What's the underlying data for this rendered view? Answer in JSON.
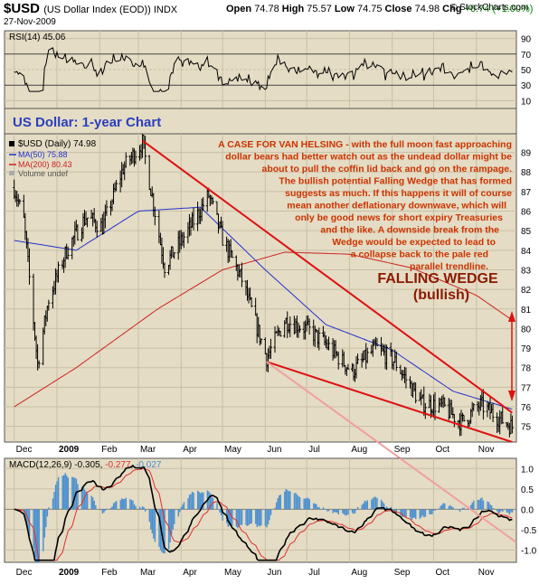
{
  "header": {
    "symbol": "$USD",
    "description": "(US Dollar Index (EOD)) INDX",
    "date": "27-Nov-2009",
    "open_label": "Open",
    "open": "74.78",
    "high_label": "High",
    "high": "75.57",
    "low_label": "Low",
    "low": "74.75",
    "close_label": "Close",
    "close": "74.98",
    "chg_label": "Chg",
    "chg": "+0.74 (+1.00%)",
    "brand": "© StockCharts.com"
  },
  "colors": {
    "panel_bg": "#e4dcc4",
    "price": "#000000",
    "ma50": "#2233cc",
    "ma200": "#cc2222",
    "wedge": "#dd1111",
    "annotation": "#cc3300",
    "title_blue": "#2a3fbf",
    "macd_hist": "#4a8fd0",
    "macd_signal": "#e03030"
  },
  "rsi_panel": {
    "label": "RSI(14) 45.06",
    "axis_ticks": [
      "90",
      "70",
      "50",
      "30",
      "10"
    ]
  },
  "price_panel": {
    "chart_title": "US Dollar: 1-year Chart",
    "legend": {
      "price": "$USD (Daily) 74.98",
      "ma50": "MA(50) 75.88",
      "ma200": "MA(200) 80.43",
      "volume": "Volume undef"
    },
    "annotation_lines": [
      "A CASE FOR VAN HELSING - with the full moon fast approaching",
      "dollar bears had better watch out as the undead dollar might be",
      "about to pull the coffin lid back and go on the rampage.",
      "The bullish potential Falling Wedge that has formed",
      "suggests as much. If this happens it will of course",
      "mean another deflationary downwave, which will",
      "only be good news for short expiry Treasuries",
      "and the like. A downside break from the",
      "Wedge would be expected to lead to",
      "a collapse back to the pale red",
      "parallel trendline."
    ],
    "wedge_label_1": "FALLING WEDGE",
    "wedge_label_2": "(bullish)",
    "axis_ticks": [
      "89",
      "88",
      "87",
      "86",
      "85",
      "84",
      "83",
      "82",
      "81",
      "80",
      "79",
      "78",
      "77",
      "76",
      "75"
    ]
  },
  "macd_panel": {
    "label_prefix": "MACD(12,26,9)",
    "macd": "-0.305",
    "signal": "-0.277",
    "hist": "-0.027",
    "axis_ticks": [
      "1.0",
      "0.5",
      "0.0",
      "-0.5",
      "-1.0"
    ]
  },
  "x_axis": {
    "labels": [
      "Dec",
      "2009",
      "Feb",
      "Mar",
      "Apr",
      "May",
      "Jun",
      "Jul",
      "Aug",
      "Sep",
      "Oct",
      "Nov"
    ]
  },
  "chart_data": {
    "type": "line",
    "title": "US Dollar: 1-year Chart",
    "x_range": [
      "2008-12",
      "2009-11-27"
    ],
    "y_range": [
      74.5,
      89.8
    ],
    "price_keypoints": [
      {
        "x": "2008-12-01",
        "y": 87.2
      },
      {
        "x": "2008-12-08",
        "y": 85.5
      },
      {
        "x": "2008-12-18",
        "y": 78.2
      },
      {
        "x": "2008-12-26",
        "y": 81.5
      },
      {
        "x": "2009-01-08",
        "y": 84.0
      },
      {
        "x": "2009-01-22",
        "y": 85.7
      },
      {
        "x": "2009-02-03",
        "y": 85.2
      },
      {
        "x": "2009-02-18",
        "y": 88.2
      },
      {
        "x": "2009-03-04",
        "y": 89.5
      },
      {
        "x": "2009-03-20",
        "y": 83.2
      },
      {
        "x": "2009-04-06",
        "y": 85.0
      },
      {
        "x": "2009-04-21",
        "y": 86.8
      },
      {
        "x": "2009-05-01",
        "y": 84.6
      },
      {
        "x": "2009-05-15",
        "y": 82.5
      },
      {
        "x": "2009-06-02",
        "y": 78.5
      },
      {
        "x": "2009-06-15",
        "y": 80.4
      },
      {
        "x": "2009-07-01",
        "y": 80.0
      },
      {
        "x": "2009-07-15",
        "y": 79.2
      },
      {
        "x": "2009-08-03",
        "y": 77.8
      },
      {
        "x": "2009-08-20",
        "y": 79.0
      },
      {
        "x": "2009-09-03",
        "y": 78.3
      },
      {
        "x": "2009-09-22",
        "y": 76.2
      },
      {
        "x": "2009-10-08",
        "y": 76.0
      },
      {
        "x": "2009-10-21",
        "y": 75.2
      },
      {
        "x": "2009-11-04",
        "y": 76.1
      },
      {
        "x": "2009-11-20",
        "y": 75.3
      },
      {
        "x": "2009-11-27",
        "y": 74.98
      }
    ],
    "ma50_keypoints": [
      {
        "x": "2008-12-01",
        "y": 84.5
      },
      {
        "x": "2009-01-15",
        "y": 84.0
      },
      {
        "x": "2009-03-01",
        "y": 86.0
      },
      {
        "x": "2009-04-15",
        "y": 86.2
      },
      {
        "x": "2009-06-01",
        "y": 83.0
      },
      {
        "x": "2009-07-15",
        "y": 80.2
      },
      {
        "x": "2009-09-01",
        "y": 78.9
      },
      {
        "x": "2009-10-15",
        "y": 76.8
      },
      {
        "x": "2009-11-27",
        "y": 75.88
      }
    ],
    "ma200_keypoints": [
      {
        "x": "2008-12-01",
        "y": 76.0
      },
      {
        "x": "2009-01-15",
        "y": 78.0
      },
      {
        "x": "2009-03-15",
        "y": 81.0
      },
      {
        "x": "2009-05-01",
        "y": 83.0
      },
      {
        "x": "2009-06-15",
        "y": 83.9
      },
      {
        "x": "2009-08-01",
        "y": 83.8
      },
      {
        "x": "2009-09-15",
        "y": 83.1
      },
      {
        "x": "2009-11-01",
        "y": 81.7
      },
      {
        "x": "2009-11-27",
        "y": 80.43
      }
    ],
    "trendlines": [
      {
        "name": "wedge upper",
        "from": {
          "x": "2009-03-04",
          "y": 89.6
        },
        "to": {
          "x": "2009-11-27",
          "y": 75.7
        }
      },
      {
        "name": "wedge lower",
        "from": {
          "x": "2009-06-02",
          "y": 78.3
        },
        "to": {
          "x": "2009-11-27",
          "y": 74.2
        }
      },
      {
        "name": "pale red parallel",
        "from": {
          "x": "2009-03-01",
          "y": 89.4
        },
        "to": {
          "x": "2009-11-27",
          "y": 70.0
        }
      }
    ],
    "rsi_range": [
      0,
      100
    ],
    "macd_range": [
      -1.2,
      1.2
    ]
  }
}
